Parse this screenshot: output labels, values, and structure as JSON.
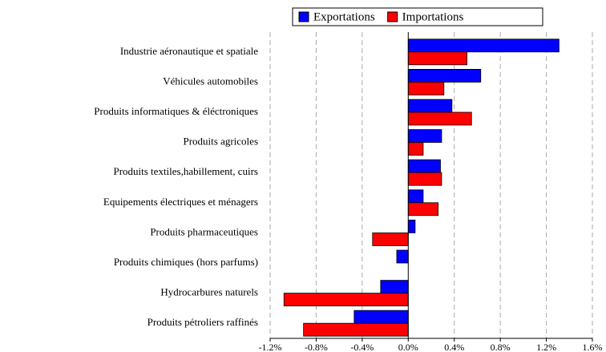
{
  "chart_data": {
    "type": "barh",
    "categories": [
      "Industrie aéronautique et spatiale",
      "Véhicules automobiles",
      "Produits informatiques & éléctroniques",
      "Produits agricoles",
      "Produits textiles,habillement, cuirs",
      "Equipements électriques et ménagers",
      "Produits pharmaceutiques",
      "Produits chimiques (hors parfums)",
      "Hydrocarbures naturels",
      "Produits pétroliers raffinés"
    ],
    "series": [
      {
        "name": "Exportations",
        "color": "#0000ff",
        "values": [
          1.31,
          0.63,
          0.38,
          0.29,
          0.28,
          0.13,
          0.06,
          -0.1,
          -0.24,
          -0.47
        ]
      },
      {
        "name": "Importations",
        "color": "#ff0000",
        "values": [
          0.51,
          0.31,
          0.55,
          0.13,
          0.29,
          0.26,
          -0.31,
          0,
          -1.08,
          -0.91
        ]
      }
    ],
    "xlim": [
      -1.2,
      1.6
    ],
    "xticks": [
      {
        "value": -1.2,
        "label": "-1.2%"
      },
      {
        "value": -0.8,
        "label": "-0.8%"
      },
      {
        "value": -0.4,
        "label": "-0.4%"
      },
      {
        "value": 0,
        "label": "0.0%"
      },
      {
        "value": 0.4,
        "label": "0.4%"
      },
      {
        "value": 0.8,
        "label": "0.8%"
      },
      {
        "value": 1.2,
        "label": "1.2%"
      },
      {
        "value": 1.6,
        "label": "1.6%"
      }
    ],
    "grid": true,
    "legend": "top"
  }
}
